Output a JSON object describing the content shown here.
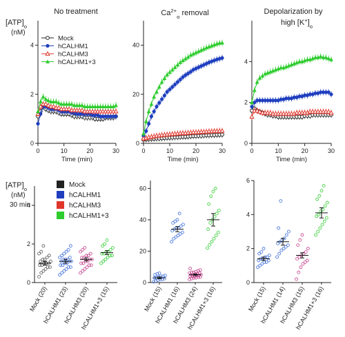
{
  "chart_data": {
    "colors": {
      "Mock": "#222222",
      "hCALHM1": "#1f3fbf",
      "hCALHM3": "#e0352b",
      "hCALHM1+3": "#2ecc2e"
    },
    "time_x": [
      0,
      1,
      2,
      3,
      4,
      5,
      6,
      7,
      8,
      9,
      10,
      11,
      12,
      13,
      14,
      15,
      16,
      17,
      18,
      19,
      20,
      21,
      22,
      23,
      24,
      25,
      26,
      27,
      28,
      29,
      30
    ],
    "top_common": {
      "y_axis_label": "[ATP]o",
      "y_axis_unit": "(nM)",
      "xlabel": "Time (min)",
      "legend": [
        "Mock",
        "hCALHM1",
        "hCALHM3",
        "hCALHM1+3"
      ]
    },
    "top_panels": [
      {
        "title": "No treatment",
        "type": "line",
        "xlim": [
          0,
          30
        ],
        "ylim": [
          0,
          5
        ],
        "yticks": [
          0,
          2,
          4
        ],
        "xticks": [
          0,
          10,
          20,
          30
        ],
        "series": [
          {
            "name": "Mock",
            "values": [
              1.1,
              1.3,
              1.5,
              1.4,
              1.35,
              1.3,
              1.3,
              1.3,
              1.25,
              1.2,
              1.2,
              1.2,
              1.2,
              1.15,
              1.1,
              1.1,
              1.1,
              1.1,
              1.05,
              1.05,
              1.05,
              1.05,
              1.0,
              1.0,
              1.0,
              1.0,
              1.05,
              1.05,
              1.05,
              1.05,
              1.1
            ]
          },
          {
            "name": "hCALHM1",
            "values": [
              0.8,
              1.2,
              1.5,
              1.5,
              1.45,
              1.4,
              1.4,
              1.4,
              1.35,
              1.3,
              1.3,
              1.3,
              1.3,
              1.25,
              1.25,
              1.2,
              1.2,
              1.2,
              1.2,
              1.2,
              1.2,
              1.15,
              1.15,
              1.15,
              1.1,
              1.1,
              1.1,
              1.1,
              1.1,
              1.1,
              1.1
            ]
          },
          {
            "name": "hCALHM3",
            "values": [
              1.2,
              1.5,
              1.6,
              1.6,
              1.55,
              1.5,
              1.5,
              1.45,
              1.45,
              1.4,
              1.4,
              1.4,
              1.4,
              1.35,
              1.35,
              1.35,
              1.35,
              1.35,
              1.3,
              1.3,
              1.3,
              1.3,
              1.3,
              1.3,
              1.3,
              1.3,
              1.3,
              1.3,
              1.3,
              1.3,
              1.3
            ]
          },
          {
            "name": "hCALHM1+3",
            "values": [
              1.3,
              1.7,
              1.9,
              1.8,
              1.75,
              1.7,
              1.7,
              1.7,
              1.65,
              1.6,
              1.6,
              1.6,
              1.6,
              1.6,
              1.55,
              1.55,
              1.55,
              1.55,
              1.5,
              1.5,
              1.5,
              1.5,
              1.5,
              1.5,
              1.5,
              1.5,
              1.5,
              1.5,
              1.5,
              1.5,
              1.55
            ]
          }
        ]
      },
      {
        "title": "Ca2+o removal",
        "title_parts": [
          "Ca",
          "2+",
          "o",
          " removal"
        ],
        "type": "line",
        "xlim": [
          0,
          30
        ],
        "ylim": [
          0,
          50
        ],
        "yticks": [
          0,
          20,
          40
        ],
        "xticks": [
          0,
          10,
          20,
          30
        ],
        "series": [
          {
            "name": "Mock",
            "values": [
              1.5,
              1.6,
              1.7,
              1.8,
              1.9,
              2.0,
              2.0,
              2.1,
              2.2,
              2.3,
              2.3,
              2.4,
              2.5,
              2.5,
              2.6,
              2.7,
              2.7,
              2.8,
              2.9,
              3.0,
              3.0,
              3.1,
              3.1,
              3.2,
              3.3,
              3.3,
              3.4,
              3.4,
              3.5,
              3.5,
              3.6
            ]
          },
          {
            "name": "hCALHM1",
            "values": [
              3.0,
              5.0,
              8.0,
              11.0,
              13.0,
              15.0,
              16.5,
              18.0,
              19.5,
              21.0,
              22.0,
              23.0,
              24.0,
              25.0,
              26.0,
              27.0,
              27.8,
              28.5,
              29.2,
              30.0,
              30.5,
              31.0,
              31.5,
              32.0,
              32.5,
              33.0,
              33.4,
              33.8,
              34.2,
              34.5,
              34.8
            ]
          },
          {
            "name": "hCALHM3",
            "values": [
              2.0,
              2.2,
              2.5,
              2.7,
              2.9,
              3.1,
              3.2,
              3.4,
              3.5,
              3.6,
              3.7,
              3.8,
              3.9,
              4.0,
              4.1,
              4.2,
              4.2,
              4.3,
              4.4,
              4.5,
              4.5,
              4.6,
              4.7,
              4.7,
              4.8,
              4.9,
              4.9,
              5.0,
              5.0,
              5.1,
              5.1
            ]
          },
          {
            "name": "hCALHM1+3",
            "values": [
              4.0,
              9.0,
              13.0,
              16.0,
              19.0,
              21.0,
              23.0,
              25.0,
              26.5,
              28.0,
              29.0,
              30.0,
              31.0,
              32.0,
              33.0,
              33.8,
              34.5,
              35.2,
              36.0,
              36.5,
              37.0,
              37.5,
              38.0,
              38.5,
              39.0,
              39.4,
              39.8,
              40.2,
              40.6,
              40.9,
              41.0
            ]
          }
        ]
      },
      {
        "title": "Depolarization by",
        "title_line2_parts": [
          "high [K",
          "+",
          "]",
          "o"
        ],
        "type": "line",
        "xlim": [
          0,
          30
        ],
        "ylim": [
          0,
          6
        ],
        "yticks": [
          0,
          2,
          4
        ],
        "xticks": [
          0,
          10,
          20,
          30
        ],
        "series": [
          {
            "name": "Mock",
            "values": [
              1.6,
              1.7,
              1.6,
              1.55,
              1.5,
              1.45,
              1.4,
              1.4,
              1.35,
              1.35,
              1.3,
              1.3,
              1.3,
              1.3,
              1.3,
              1.3,
              1.3,
              1.3,
              1.3,
              1.3,
              1.35,
              1.35,
              1.35,
              1.4,
              1.4,
              1.4,
              1.4,
              1.4,
              1.4,
              1.4,
              1.4
            ]
          },
          {
            "name": "hCALHM1",
            "values": [
              1.8,
              2.0,
              2.1,
              2.1,
              2.1,
              2.1,
              2.1,
              2.1,
              2.1,
              2.1,
              2.1,
              2.15,
              2.15,
              2.2,
              2.2,
              2.2,
              2.25,
              2.25,
              2.3,
              2.3,
              2.35,
              2.35,
              2.4,
              2.4,
              2.45,
              2.45,
              2.5,
              2.5,
              2.5,
              2.5,
              2.4
            ]
          },
          {
            "name": "hCALHM3",
            "values": [
              1.3,
              1.6,
              1.6,
              1.55,
              1.5,
              1.5,
              1.5,
              1.5,
              1.45,
              1.45,
              1.45,
              1.45,
              1.45,
              1.45,
              1.45,
              1.45,
              1.45,
              1.5,
              1.5,
              1.5,
              1.5,
              1.5,
              1.55,
              1.55,
              1.55,
              1.55,
              1.55,
              1.55,
              1.55,
              1.55,
              1.5
            ]
          },
          {
            "name": "hCALHM1+3",
            "values": [
              2.0,
              2.6,
              3.0,
              3.2,
              3.3,
              3.4,
              3.45,
              3.5,
              3.55,
              3.6,
              3.65,
              3.7,
              3.7,
              3.75,
              3.8,
              3.85,
              3.9,
              3.95,
              4.0,
              4.0,
              4.05,
              4.1,
              4.1,
              4.15,
              4.2,
              4.2,
              4.25,
              4.2,
              4.2,
              4.15,
              4.1
            ]
          }
        ]
      }
    ],
    "bottom_common": {
      "y_axis_label": "[ATP]o",
      "y_axis_unit": "(nM)",
      "time_label": "30 min",
      "legend": [
        "Mock",
        "hCALHM1",
        "hCALHM3",
        "hCALHM1+3"
      ]
    },
    "bottom_panels": [
      {
        "type": "scatter",
        "ylim": [
          0,
          5
        ],
        "yticks": [
          0,
          2,
          4
        ],
        "categories": [
          "Mock (20)",
          "hCALHM1 (23)",
          "hCALHM3 (20)",
          "hCALHM1+3 (15)"
        ],
        "means": [
          1.0,
          1.1,
          1.2,
          1.55
        ],
        "sems": [
          0.1,
          0.1,
          0.08,
          0.1
        ],
        "points": [
          [
            0.3,
            0.5,
            0.6,
            0.7,
            0.8,
            0.8,
            0.9,
            0.9,
            1.0,
            1.0,
            1.0,
            1.1,
            1.1,
            1.2,
            1.2,
            1.3,
            1.4,
            1.5,
            1.6,
            1.9
          ],
          [
            0.4,
            0.5,
            0.6,
            0.7,
            0.8,
            0.8,
            0.9,
            0.9,
            1.0,
            1.0,
            1.1,
            1.1,
            1.1,
            1.2,
            1.2,
            1.2,
            1.3,
            1.3,
            1.4,
            1.5,
            1.6,
            1.7,
            1.9
          ],
          [
            0.5,
            0.6,
            0.7,
            0.8,
            0.9,
            0.9,
            1.0,
            1.0,
            1.1,
            1.1,
            1.2,
            1.2,
            1.3,
            1.3,
            1.4,
            1.4,
            1.5,
            1.6,
            1.7,
            1.8
          ],
          [
            1.0,
            1.1,
            1.2,
            1.3,
            1.4,
            1.4,
            1.5,
            1.5,
            1.6,
            1.6,
            1.7,
            1.8,
            1.9,
            2.0,
            2.2
          ]
        ]
      },
      {
        "type": "scatter",
        "ylim": [
          0,
          65
        ],
        "yticks": [
          0,
          20,
          40,
          60
        ],
        "categories": [
          "Mock (15)",
          "hCALHM1 (16)",
          "hCALHM3 (24)",
          "hCALHM1+3 (16)"
        ],
        "means": [
          3.0,
          34.0,
          5.0,
          40.0
        ],
        "sems": [
          0.6,
          1.6,
          0.5,
          4.0
        ],
        "points": [
          [
            0.5,
            1.0,
            1.5,
            2.0,
            2.0,
            2.5,
            3.0,
            3.0,
            3.5,
            4.0,
            4.0,
            4.5,
            5.0,
            5.5,
            6.0
          ],
          [
            26,
            28,
            29,
            30,
            31,
            32,
            33,
            34,
            35,
            35,
            36,
            37,
            38,
            39,
            40,
            44
          ],
          [
            2.0,
            2.5,
            3.0,
            3.0,
            3.5,
            3.5,
            4.0,
            4.0,
            4.0,
            4.5,
            4.5,
            5.0,
            5.0,
            5.0,
            5.5,
            5.5,
            6.0,
            6.0,
            6.5,
            6.5,
            7.0,
            7.5,
            8.0,
            9.0
          ],
          [
            22,
            24,
            26,
            28,
            30,
            32,
            34,
            38,
            40,
            42,
            44,
            46,
            50,
            55,
            58,
            60
          ]
        ]
      },
      {
        "type": "scatter",
        "ylim": [
          0,
          6
        ],
        "yticks": [
          0,
          2,
          4,
          6
        ],
        "categories": [
          "Mock (15)",
          "hCALHM1 (14)",
          "hCALHM3 (15)",
          "hCALHM1+3 (16)"
        ],
        "means": [
          1.4,
          2.4,
          1.6,
          4.1
        ],
        "sems": [
          0.1,
          0.2,
          0.15,
          0.3
        ],
        "points": [
          [
            0.9,
            1.0,
            1.1,
            1.2,
            1.2,
            1.3,
            1.3,
            1.4,
            1.4,
            1.5,
            1.5,
            1.6,
            1.7,
            1.8,
            2.0
          ],
          [
            1.5,
            1.7,
            1.9,
            2.0,
            2.1,
            2.2,
            2.3,
            2.4,
            2.5,
            2.6,
            2.8,
            3.0,
            3.2,
            4.8
          ],
          [
            0.2,
            0.6,
            0.9,
            1.1,
            1.2,
            1.3,
            1.4,
            1.5,
            1.6,
            1.7,
            1.8,
            2.0,
            2.2,
            2.5,
            2.8
          ],
          [
            2.8,
            3.0,
            3.2,
            3.4,
            3.6,
            3.8,
            3.9,
            4.0,
            4.2,
            4.3,
            4.5,
            4.7,
            4.9,
            5.1,
            5.4,
            5.7
          ]
        ]
      }
    ]
  }
}
